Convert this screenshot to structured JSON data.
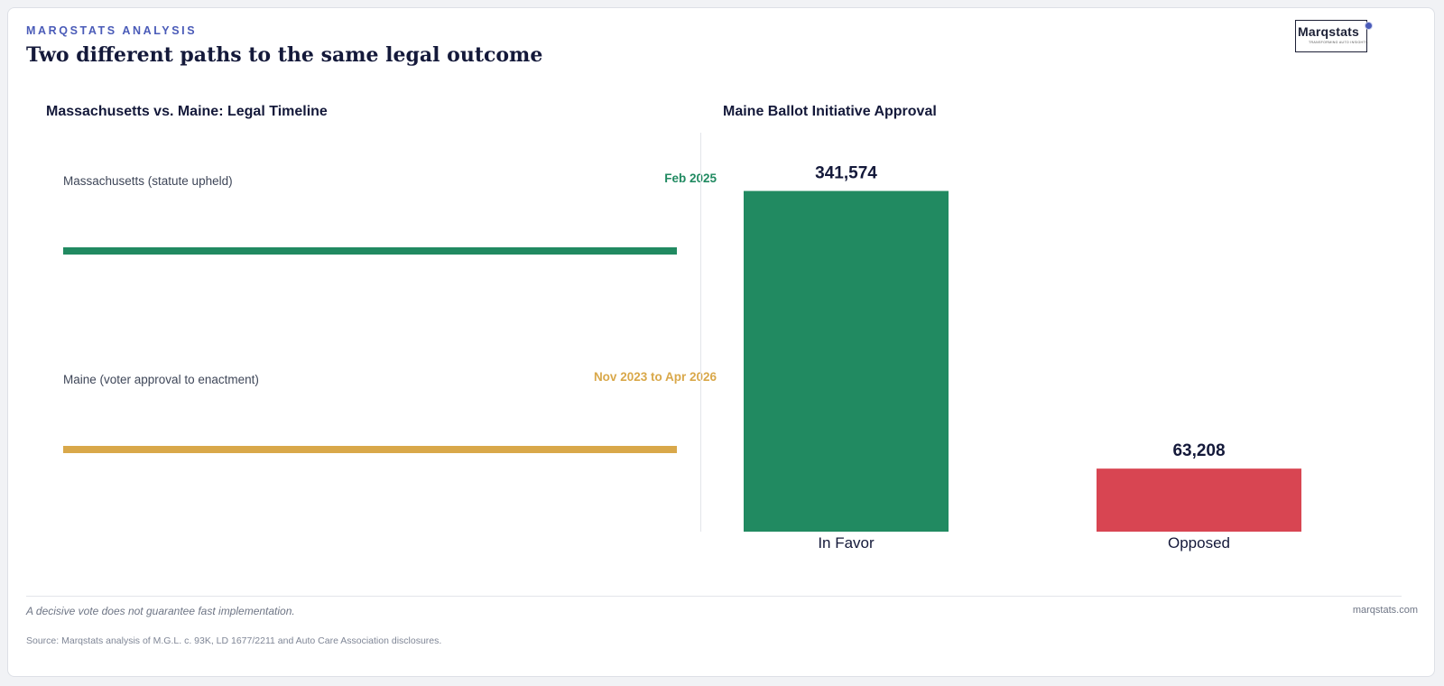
{
  "header": {
    "eyebrow": "MARQSTATS ANALYSIS",
    "title": "Two different paths to the same legal outcome",
    "logo_word": "Marqstats",
    "logo_tagline": "TRANSFORMING AUTO INSIGHTS"
  },
  "colors": {
    "green": "#218a61",
    "gold": "#d9a84a",
    "red": "#d84552",
    "accent": "#4a5bb8"
  },
  "timeline": {
    "title": "Massachusetts vs. Maine: Legal Timeline",
    "rows": [
      {
        "label": "Massachusetts (statute upheld)",
        "date": "Feb 2025"
      },
      {
        "label": "Maine (voter approval to enactment)",
        "date": "Nov 2023 to Apr 2026"
      }
    ]
  },
  "chart_data": {
    "type": "bar",
    "title": "Maine Ballot Initiative Approval",
    "categories": [
      "In Favor",
      "Opposed"
    ],
    "values": [
      341574,
      63208
    ],
    "value_labels": [
      "341,574",
      "63,208"
    ],
    "ylim": [
      0,
      400000
    ],
    "grid": false
  },
  "footer": {
    "note": "A decisive vote does not guarantee fast implementation.",
    "site": "marqstats.com",
    "source": "Source: Marqstats analysis of M.G.L. c. 93K, LD 1677/2211 and Auto Care Association disclosures."
  }
}
